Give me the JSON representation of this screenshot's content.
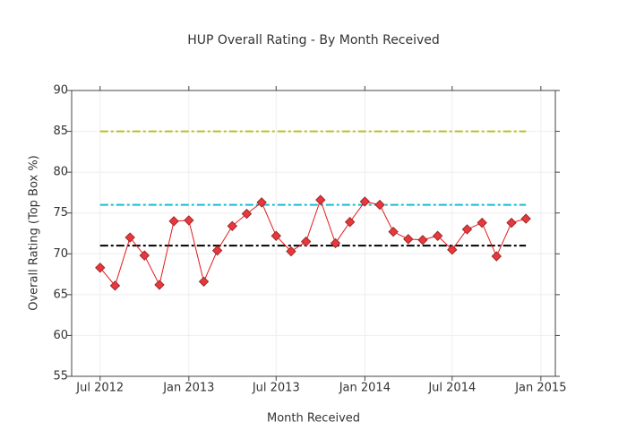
{
  "chart_data": {
    "type": "line",
    "title": "HUP Overall Rating - By Month Received",
    "x_label": "Month Received",
    "y_label": "Overall Rating (Top Box %)",
    "x": [
      "2012-07",
      "2012-08",
      "2012-09",
      "2012-10",
      "2012-11",
      "2012-12",
      "2013-01",
      "2013-02",
      "2013-03",
      "2013-04",
      "2013-05",
      "2013-06",
      "2013-07",
      "2013-08",
      "2013-09",
      "2013-10",
      "2013-11",
      "2013-12",
      "2014-01",
      "2014-02",
      "2014-03",
      "2014-04",
      "2014-05",
      "2014-06",
      "2014-07",
      "2014-08",
      "2014-09",
      "2014-10",
      "2014-11",
      "2014-12"
    ],
    "series": [
      {
        "color": "#e41a1c",
        "marker_color": "#e8383d",
        "values": [
          68.3,
          66.1,
          72.0,
          69.8,
          66.2,
          74.0,
          74.1,
          66.6,
          70.4,
          73.4,
          74.9,
          76.3,
          72.2,
          70.3,
          71.5,
          76.6,
          71.3,
          73.9,
          76.4,
          76.0,
          72.7,
          71.8,
          71.7,
          72.2,
          70.5,
          73.0,
          73.8,
          69.7,
          73.8,
          74.3
        ]
      }
    ],
    "reference_lines": [
      {
        "value": 85,
        "color": "#bcbd22"
      },
      {
        "value": 76,
        "color": "#17becf"
      },
      {
        "value": 71,
        "color": "#000000"
      }
    ],
    "xlim": [
      "2012-05-03",
      "2015-01-31"
    ],
    "xticks": [
      {
        "value": "2012-07-01",
        "label": "Jul 2012"
      },
      {
        "value": "2013-01-01",
        "label": "Jan 2013"
      },
      {
        "value": "2013-07-01",
        "label": "Jul 2013"
      },
      {
        "value": "2014-01-01",
        "label": "Jan 2014"
      },
      {
        "value": "2014-07-01",
        "label": "Jul 2014"
      },
      {
        "value": "2015-01-01",
        "label": "Jan 2015"
      }
    ],
    "ylim": [
      55,
      90
    ],
    "yticks": [
      55,
      60,
      65,
      70,
      75,
      80,
      85,
      90
    ],
    "grid": true
  }
}
